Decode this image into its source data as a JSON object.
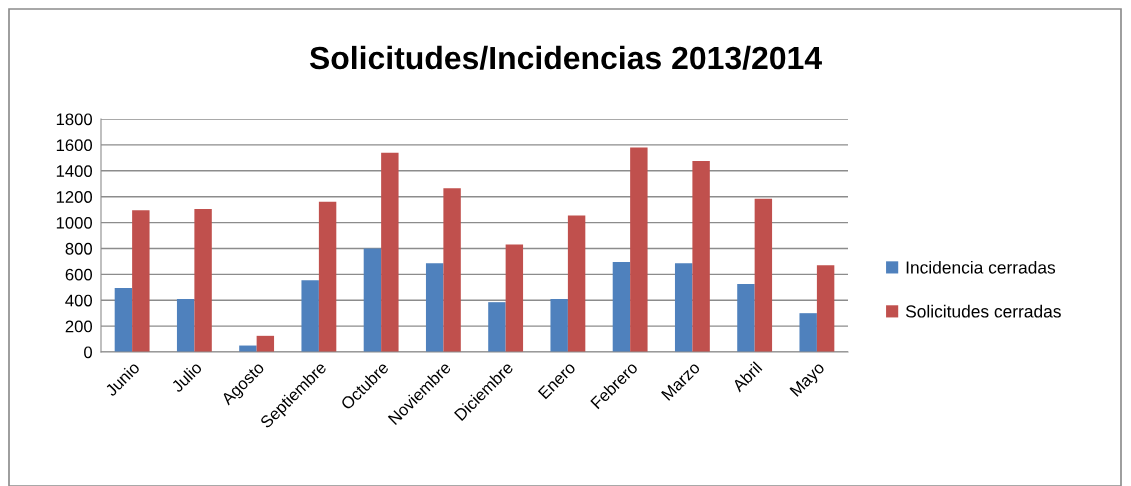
{
  "chart_data": {
    "type": "bar",
    "title": "Solicitudes/Incidencias 2013/2014",
    "categories": [
      "Junio",
      "Julio",
      "Agosto",
      "Septiembre",
      "Octubre",
      "Noviembre",
      "Diciembre",
      "Enero",
      "Febrero",
      "Marzo",
      "Abril",
      "Mayo"
    ],
    "series": [
      {
        "name": "Incidencia cerradas",
        "color": "#4f81bd",
        "values": [
          495,
          410,
          50,
          555,
          800,
          685,
          385,
          410,
          695,
          685,
          525,
          300
        ]
      },
      {
        "name": "Solicitudes cerradas",
        "color": "#c0504d",
        "values": [
          1095,
          1105,
          125,
          1160,
          1540,
          1265,
          830,
          1055,
          1580,
          1475,
          1185,
          670
        ]
      }
    ],
    "ylim": [
      0,
      1800
    ],
    "yticks": [
      0,
      200,
      400,
      600,
      800,
      1000,
      1200,
      1400,
      1600,
      1800
    ],
    "grid": "y",
    "legend": "right"
  }
}
